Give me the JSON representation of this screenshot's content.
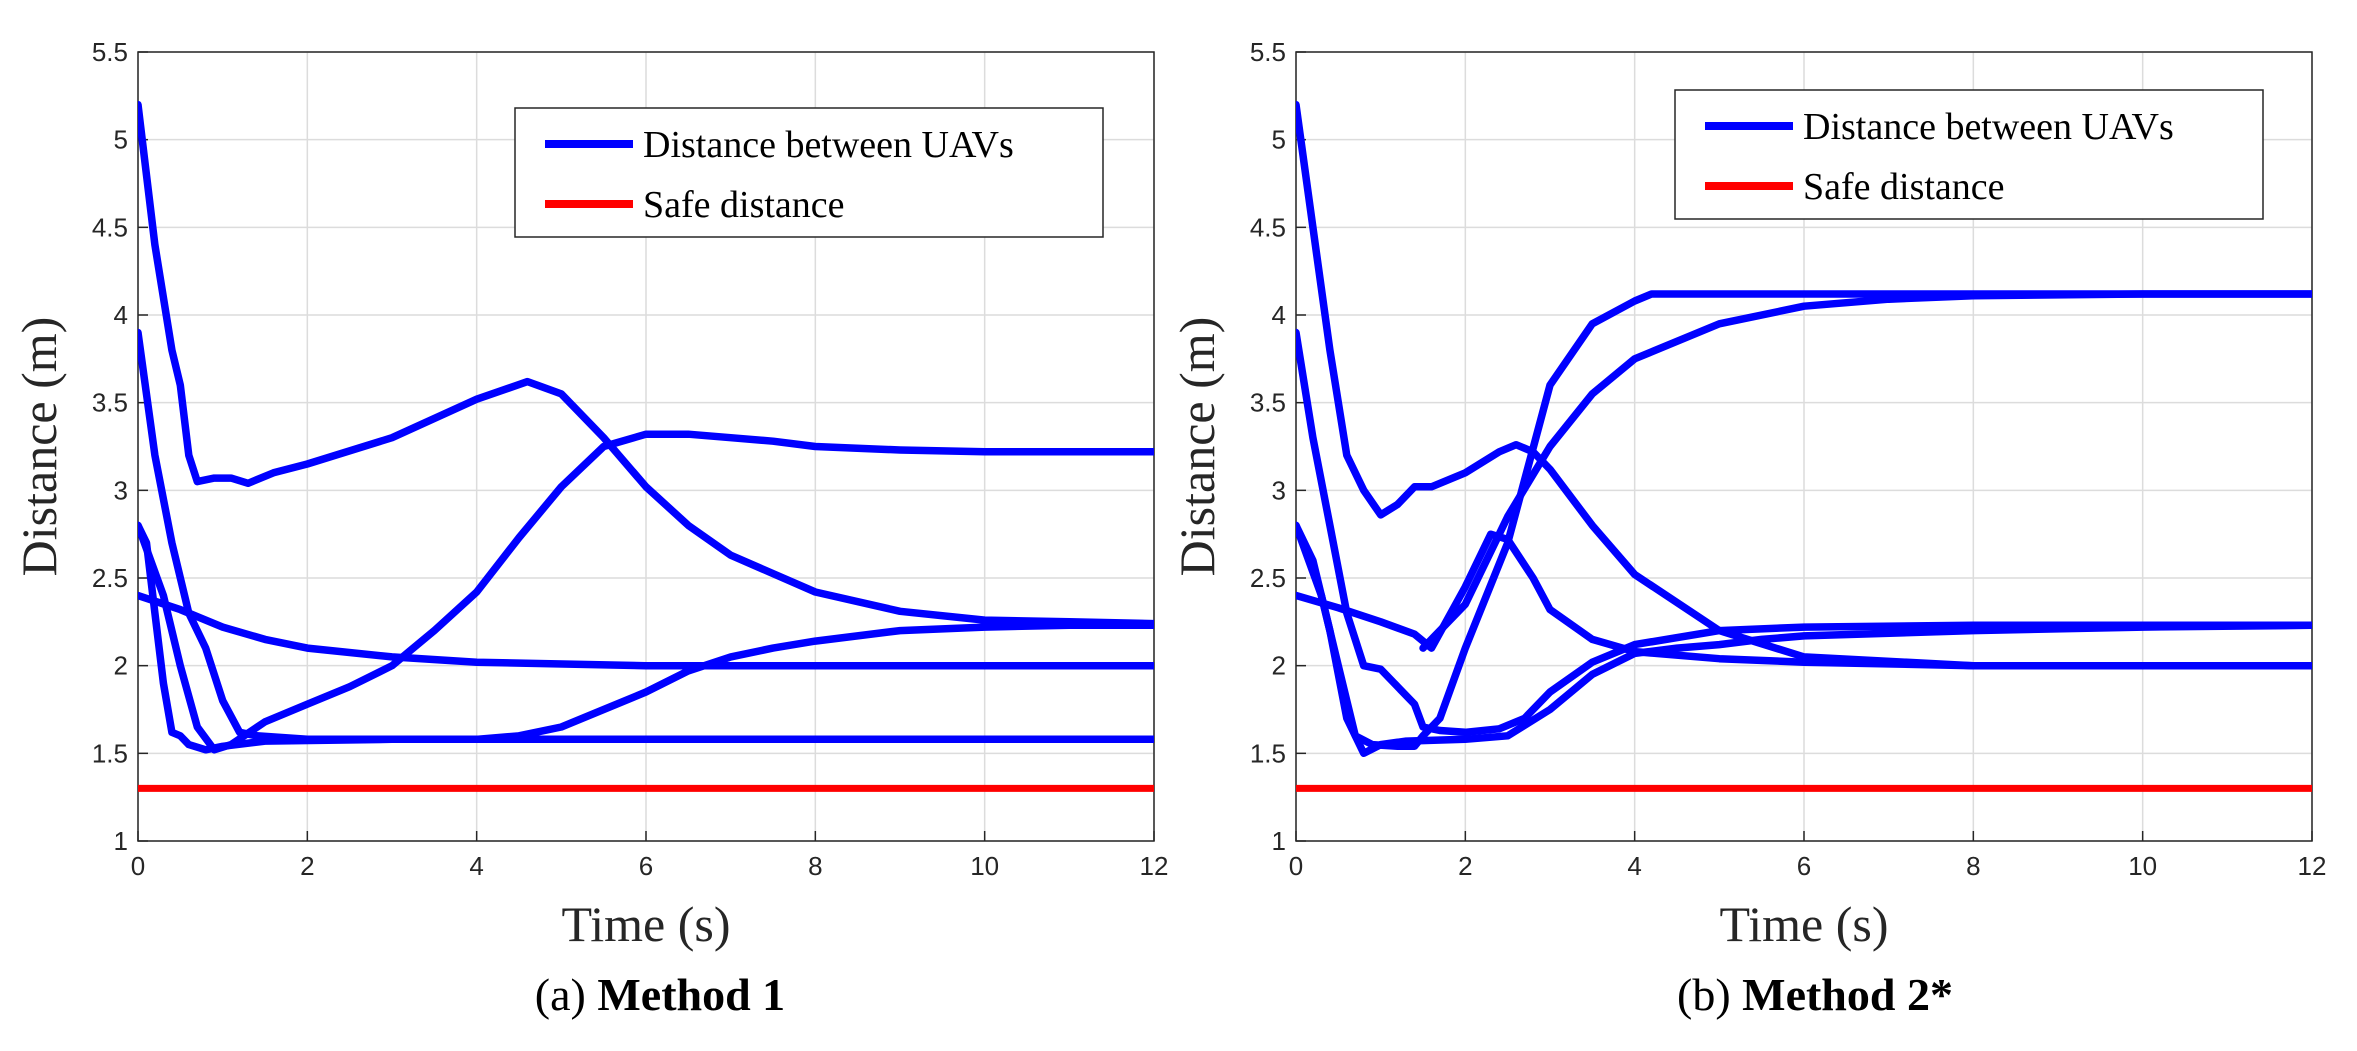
{
  "chart_data": [
    {
      "type": "line",
      "caption_prefix": "(a)",
      "caption_name": "Method 1",
      "xlabel": "Time (s)",
      "ylabel": "Distance (m)",
      "xlim": [
        0,
        12
      ],
      "ylim": [
        1,
        5.5
      ],
      "xticks": [
        0,
        2,
        4,
        6,
        8,
        10,
        12
      ],
      "yticks": [
        1,
        1.5,
        2,
        2.5,
        3,
        3.5,
        4,
        4.5,
        5,
        5.5
      ],
      "grid": true,
      "legend_position": "top-right",
      "legend": [
        {
          "label": "Distance between UAVs",
          "color": "#0000ff"
        },
        {
          "label": "Safe distance",
          "color": "#ff0000"
        }
      ],
      "series": [
        {
          "name": "Distance between UAVs",
          "color": "#0000ff",
          "points": [
            [
              0,
              5.2
            ],
            [
              0.2,
              4.4
            ],
            [
              0.4,
              3.8
            ],
            [
              0.5,
              3.6
            ],
            [
              0.6,
              3.2
            ],
            [
              0.7,
              3.05
            ],
            [
              0.9,
              3.07
            ],
            [
              1.1,
              3.07
            ],
            [
              1.3,
              3.04
            ],
            [
              1.6,
              3.1
            ],
            [
              2,
              3.15
            ],
            [
              3,
              3.3
            ],
            [
              4,
              3.52
            ],
            [
              4.6,
              3.62
            ],
            [
              5,
              3.55
            ],
            [
              5.5,
              3.3
            ],
            [
              6,
              3.02
            ],
            [
              6.5,
              2.8
            ],
            [
              7,
              2.63
            ],
            [
              8,
              2.42
            ],
            [
              9,
              2.31
            ],
            [
              10,
              2.26
            ],
            [
              11,
              2.25
            ],
            [
              12,
              2.24
            ]
          ]
        },
        {
          "name": "Distance between UAVs",
          "color": "#0000ff",
          "points": [
            [
              0,
              3.9
            ],
            [
              0.2,
              3.2
            ],
            [
              0.4,
              2.7
            ],
            [
              0.6,
              2.3
            ],
            [
              0.8,
              2.1
            ],
            [
              1.0,
              1.8
            ],
            [
              1.2,
              1.62
            ],
            [
              1.4,
              1.6
            ],
            [
              2,
              1.58
            ],
            [
              4,
              1.58
            ],
            [
              6,
              1.58
            ],
            [
              8,
              1.58
            ],
            [
              10,
              1.58
            ],
            [
              12,
              1.58
            ]
          ]
        },
        {
          "name": "Distance between UAVs",
          "color": "#0000ff",
          "points": [
            [
              0,
              2.8
            ],
            [
              0.1,
              2.7
            ],
            [
              0.2,
              2.3
            ],
            [
              0.3,
              1.9
            ],
            [
              0.4,
              1.62
            ],
            [
              0.5,
              1.6
            ],
            [
              0.6,
              1.55
            ],
            [
              0.8,
              1.52
            ],
            [
              1.0,
              1.54
            ],
            [
              1.5,
              1.57
            ],
            [
              3,
              1.58
            ],
            [
              4,
              1.58
            ],
            [
              4.5,
              1.6
            ],
            [
              5,
              1.65
            ],
            [
              5.5,
              1.75
            ],
            [
              6,
              1.85
            ],
            [
              6.5,
              1.97
            ],
            [
              7,
              2.05
            ],
            [
              7.5,
              2.1
            ],
            [
              8,
              2.14
            ],
            [
              9,
              2.2
            ],
            [
              10,
              2.22
            ],
            [
              11,
              2.23
            ],
            [
              12,
              2.23
            ]
          ]
        },
        {
          "name": "Distance between UAVs",
          "color": "#0000ff",
          "points": [
            [
              0,
              2.8
            ],
            [
              0.3,
              2.4
            ],
            [
              0.5,
              2.0
            ],
            [
              0.7,
              1.65
            ],
            [
              0.9,
              1.52
            ],
            [
              1.1,
              1.55
            ],
            [
              1.5,
              1.68
            ],
            [
              2,
              1.78
            ],
            [
              2.5,
              1.88
            ],
            [
              3,
              2.0
            ],
            [
              3.5,
              2.2
            ],
            [
              4,
              2.42
            ],
            [
              4.5,
              2.73
            ],
            [
              5,
              3.02
            ],
            [
              5.5,
              3.25
            ],
            [
              6,
              3.32
            ],
            [
              6.5,
              3.32
            ],
            [
              7,
              3.3
            ],
            [
              7.5,
              3.28
            ],
            [
              8,
              3.25
            ],
            [
              9,
              3.23
            ],
            [
              10,
              3.22
            ],
            [
              12,
              3.22
            ]
          ]
        },
        {
          "name": "Distance between UAVs",
          "color": "#0000ff",
          "points": [
            [
              0,
              2.4
            ],
            [
              0.5,
              2.32
            ],
            [
              1,
              2.22
            ],
            [
              1.5,
              2.15
            ],
            [
              2,
              2.1
            ],
            [
              3,
              2.05
            ],
            [
              4,
              2.02
            ],
            [
              6,
              2.0
            ],
            [
              8,
              2.0
            ],
            [
              10,
              2.0
            ],
            [
              12,
              2.0
            ]
          ]
        },
        {
          "name": "Safe distance",
          "color": "#ff0000",
          "points": [
            [
              0,
              1.3
            ],
            [
              12,
              1.3
            ]
          ]
        }
      ]
    },
    {
      "type": "line",
      "caption_prefix": "(b)",
      "caption_name": "Method 2*",
      "xlabel": "Time (s)",
      "ylabel": "Distance (m)",
      "xlim": [
        0,
        12
      ],
      "ylim": [
        1,
        5.5
      ],
      "xticks": [
        0,
        2,
        4,
        6,
        8,
        10,
        12
      ],
      "yticks": [
        1,
        1.5,
        2,
        2.5,
        3,
        3.5,
        4,
        4.5,
        5,
        5.5
      ],
      "grid": true,
      "legend_position": "top-right",
      "legend": [
        {
          "label": "Distance between UAVs",
          "color": "#0000ff"
        },
        {
          "label": "Safe distance",
          "color": "#ff0000"
        }
      ],
      "series": [
        {
          "name": "Distance between UAVs",
          "color": "#0000ff",
          "points": [
            [
              0,
              5.2
            ],
            [
              0.2,
              4.5
            ],
            [
              0.4,
              3.8
            ],
            [
              0.6,
              3.2
            ],
            [
              0.8,
              3.0
            ],
            [
              1.0,
              2.86
            ],
            [
              1.2,
              2.92
            ],
            [
              1.4,
              3.02
            ],
            [
              1.6,
              3.02
            ],
            [
              2,
              3.1
            ],
            [
              2.4,
              3.22
            ],
            [
              2.6,
              3.26
            ],
            [
              2.8,
              3.22
            ],
            [
              3,
              3.12
            ],
            [
              3.5,
              2.8
            ],
            [
              4,
              2.52
            ],
            [
              5,
              2.2
            ],
            [
              6,
              2.05
            ],
            [
              8,
              2.0
            ],
            [
              10,
              2.0
            ],
            [
              12,
              2.0
            ]
          ]
        },
        {
          "name": "Distance between UAVs",
          "color": "#0000ff",
          "points": [
            [
              0,
              3.9
            ],
            [
              0.2,
              3.3
            ],
            [
              0.4,
              2.8
            ],
            [
              0.6,
              2.3
            ],
            [
              0.8,
              2.0
            ],
            [
              1.0,
              1.98
            ],
            [
              1.2,
              1.88
            ],
            [
              1.4,
              1.78
            ],
            [
              1.5,
              1.65
            ],
            [
              1.7,
              1.63
            ],
            [
              2,
              1.62
            ],
            [
              2.4,
              1.64
            ],
            [
              2.7,
              1.7
            ],
            [
              3,
              1.85
            ],
            [
              3.5,
              2.02
            ],
            [
              4,
              2.12
            ],
            [
              5,
              2.2
            ],
            [
              6,
              2.22
            ],
            [
              8,
              2.23
            ],
            [
              10,
              2.23
            ],
            [
              12,
              2.23
            ]
          ]
        },
        {
          "name": "Distance between UAVs",
          "color": "#0000ff",
          "points": [
            [
              0,
              2.8
            ],
            [
              0.3,
              2.4
            ],
            [
              0.5,
              2.0
            ],
            [
              0.7,
              1.6
            ],
            [
              0.9,
              1.55
            ],
            [
              1.2,
              1.54
            ],
            [
              1.4,
              1.54
            ],
            [
              1.5,
              1.6
            ],
            [
              1.7,
              1.7
            ],
            [
              2,
              2.1
            ],
            [
              2.5,
              2.7
            ],
            [
              3,
              3.6
            ],
            [
              3.5,
              3.95
            ],
            [
              4,
              4.08
            ],
            [
              4.2,
              4.12
            ],
            [
              6,
              4.12
            ],
            [
              8,
              4.12
            ],
            [
              12,
              4.12
            ]
          ]
        },
        {
          "name": "Distance between UAVs",
          "color": "#0000ff",
          "points": [
            [
              0,
              2.8
            ],
            [
              0.2,
              2.6
            ],
            [
              0.4,
              2.2
            ],
            [
              0.6,
              1.7
            ],
            [
              0.8,
              1.5
            ],
            [
              1.0,
              1.55
            ],
            [
              1.3,
              1.57
            ],
            [
              2,
              1.58
            ],
            [
              2.5,
              1.6
            ],
            [
              3,
              1.75
            ],
            [
              3.5,
              1.95
            ],
            [
              4,
              2.07
            ],
            [
              4.5,
              2.1
            ],
            [
              5,
              2.12
            ],
            [
              5.5,
              2.15
            ],
            [
              6,
              2.17
            ],
            [
              8,
              2.2
            ],
            [
              10,
              2.22
            ],
            [
              12,
              2.23
            ]
          ]
        },
        {
          "name": "Distance between UAVs",
          "color": "#0000ff",
          "points": [
            [
              0,
              2.4
            ],
            [
              0.5,
              2.33
            ],
            [
              1,
              2.25
            ],
            [
              1.4,
              2.18
            ],
            [
              1.6,
              2.1
            ],
            [
              2,
              2.45
            ],
            [
              2.3,
              2.75
            ],
            [
              2.5,
              2.72
            ],
            [
              2.8,
              2.5
            ],
            [
              3,
              2.32
            ],
            [
              3.5,
              2.15
            ],
            [
              4,
              2.08
            ],
            [
              5,
              2.04
            ],
            [
              6,
              2.02
            ],
            [
              8,
              2.0
            ],
            [
              12,
              2.0
            ]
          ]
        },
        {
          "name": "Distance between UAVs",
          "color": "#0000ff",
          "points": [
            [
              1.5,
              2.1
            ],
            [
              2,
              2.35
            ],
            [
              2.5,
              2.85
            ],
            [
              3,
              3.25
            ],
            [
              3.5,
              3.55
            ],
            [
              4,
              3.75
            ],
            [
              5,
              3.95
            ],
            [
              6,
              4.05
            ],
            [
              7,
              4.09
            ],
            [
              8,
              4.11
            ],
            [
              10,
              4.12
            ],
            [
              12,
              4.12
            ]
          ]
        },
        {
          "name": "Safe distance",
          "color": "#ff0000",
          "points": [
            [
              0,
              1.3
            ],
            [
              12,
              1.3
            ]
          ]
        }
      ]
    }
  ]
}
